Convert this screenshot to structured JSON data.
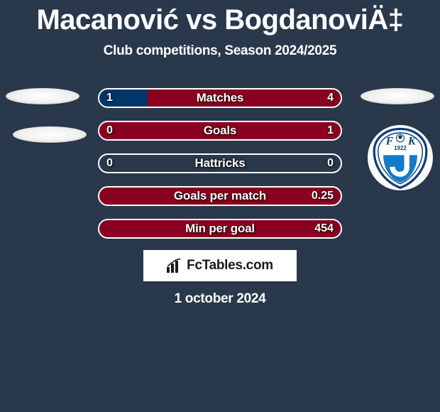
{
  "background_color": "#29384b",
  "title": {
    "player1": "Macanović",
    "vs": "vs",
    "player2": "BogdanoviÄ‡",
    "fontsize": 40,
    "color": "#ffffff"
  },
  "subtitle": {
    "text": "Club competitions, Season 2024/2025",
    "fontsize": 19,
    "color": "#ffffff"
  },
  "colors": {
    "left_fill": "#00366a",
    "right_fill": "#8a0020",
    "pill_border": "#ffffff",
    "text_shadow": "rgba(0,0,0,0.85)"
  },
  "stats": [
    {
      "label": "Matches",
      "left_val": "1",
      "right_val": "4",
      "left_pct": 20,
      "right_pct": 80
    },
    {
      "label": "Goals",
      "left_val": "0",
      "right_val": "1",
      "left_pct": 0,
      "right_pct": 100
    },
    {
      "label": "Hattricks",
      "left_val": "0",
      "right_val": "0",
      "left_pct": 0,
      "right_pct": 0
    },
    {
      "label": "Goals per match",
      "left_val": "",
      "right_val": "0.25",
      "left_pct": 0,
      "right_pct": 100
    },
    {
      "label": "Min per goal",
      "left_val": "",
      "right_val": "454",
      "left_pct": 0,
      "right_pct": 100
    }
  ],
  "crest": {
    "letters_left": "F",
    "letters_right": "K",
    "year": "1922",
    "outer_stroke": "#0a3e7a",
    "inner_blue": "#1679c5",
    "inner_white": "#ffffff"
  },
  "branding": {
    "text": "FcTables.com",
    "icon": "bar-chart-icon",
    "bg": "#ffffff",
    "color": "#1a1a1a"
  },
  "date": "1 october 2024"
}
